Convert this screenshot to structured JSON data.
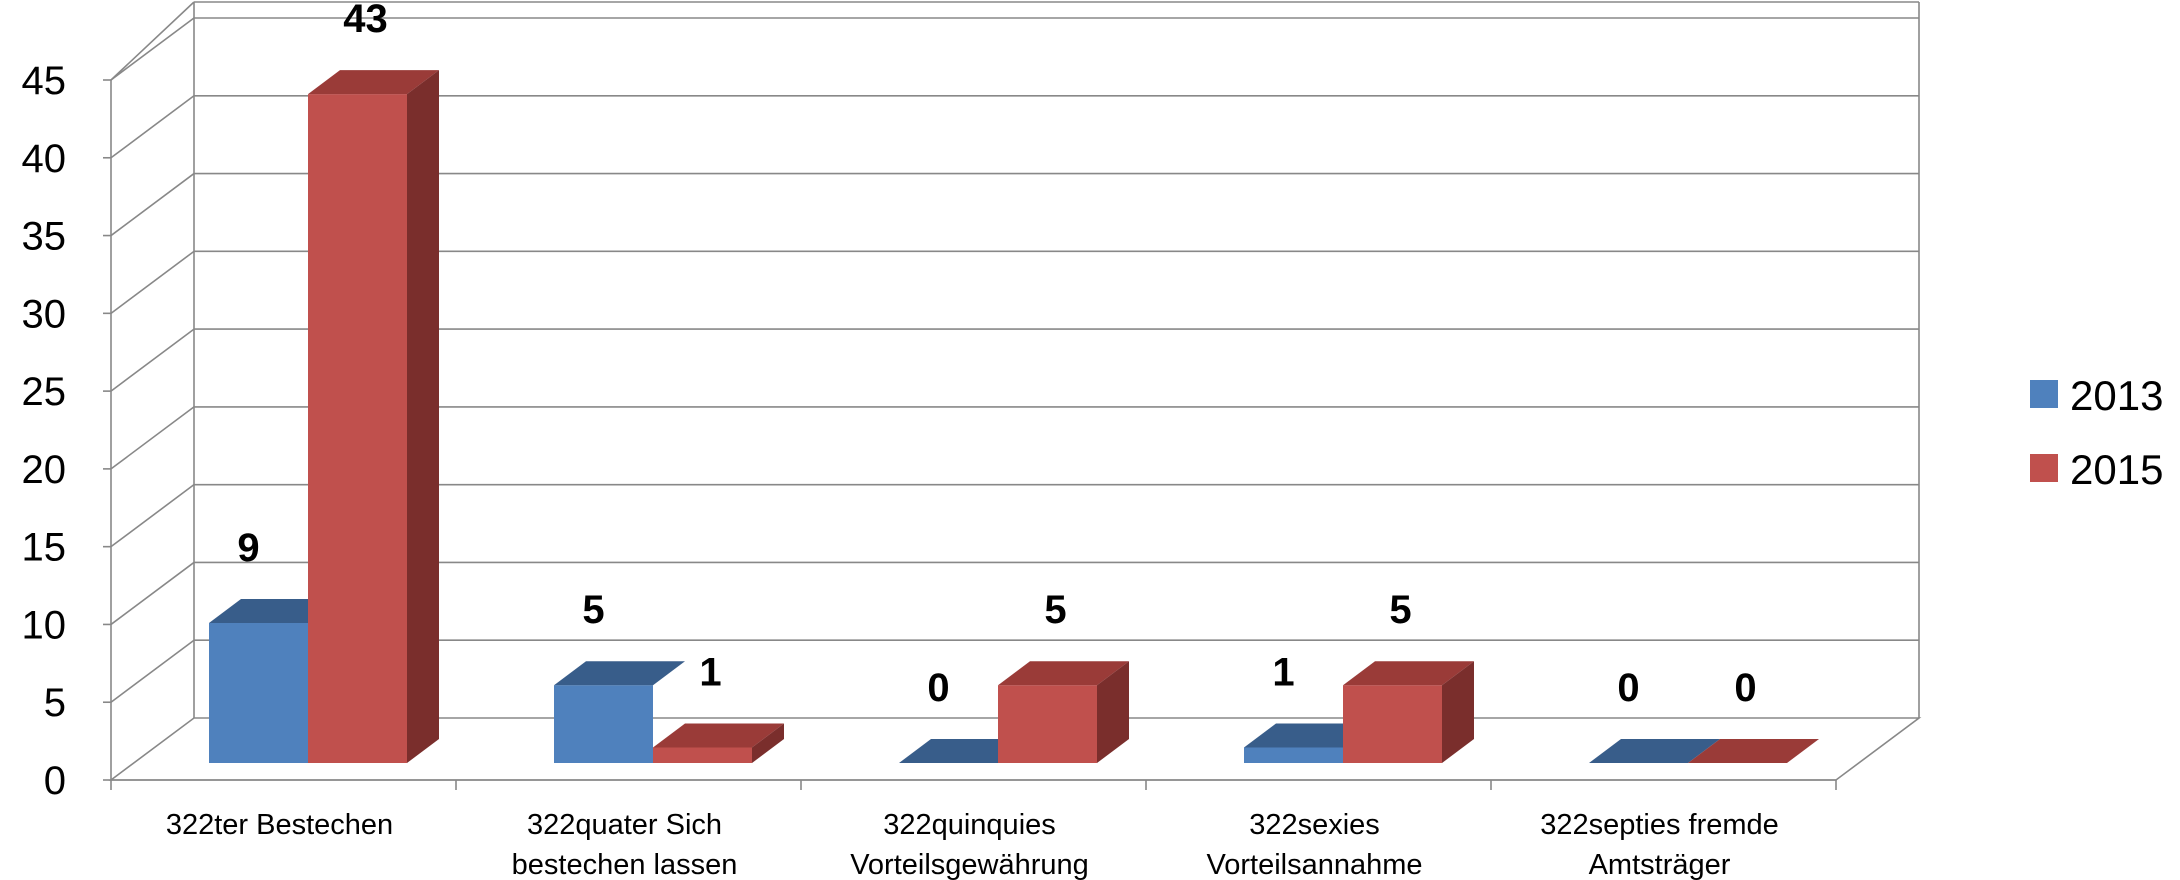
{
  "chart_data": {
    "type": "bar",
    "style": "3d-clustered-column",
    "categories": [
      [
        "322ter Bestechen"
      ],
      [
        "322quater Sich",
        "bestechen lassen"
      ],
      [
        "322quinquies",
        "Vorteilsgewährung"
      ],
      [
        "322sexies",
        "Vorteilsannahme"
      ],
      [
        "322septies fremde",
        "Amtsträger"
      ]
    ],
    "series": [
      {
        "name": "2013",
        "values": [
          9,
          5,
          0,
          1,
          0
        ],
        "color": "#4F81BD",
        "top_color": "#385D8A",
        "side_color": "#2C4A6E"
      },
      {
        "name": "2015",
        "values": [
          43,
          1,
          5,
          5,
          0
        ],
        "color": "#C0504D",
        "top_color": "#9A3B38",
        "side_color": "#7A2E2C"
      }
    ],
    "value_labels": [
      [
        "9",
        "5",
        "0",
        "1",
        "0"
      ],
      [
        "43",
        "1",
        "5",
        "5",
        "0"
      ]
    ],
    "y_ticks": [
      "0",
      "5",
      "10",
      "15",
      "20",
      "25",
      "30",
      "35",
      "40",
      "45"
    ],
    "ylim": [
      0,
      45
    ],
    "grid": true,
    "legend_position": "right"
  }
}
